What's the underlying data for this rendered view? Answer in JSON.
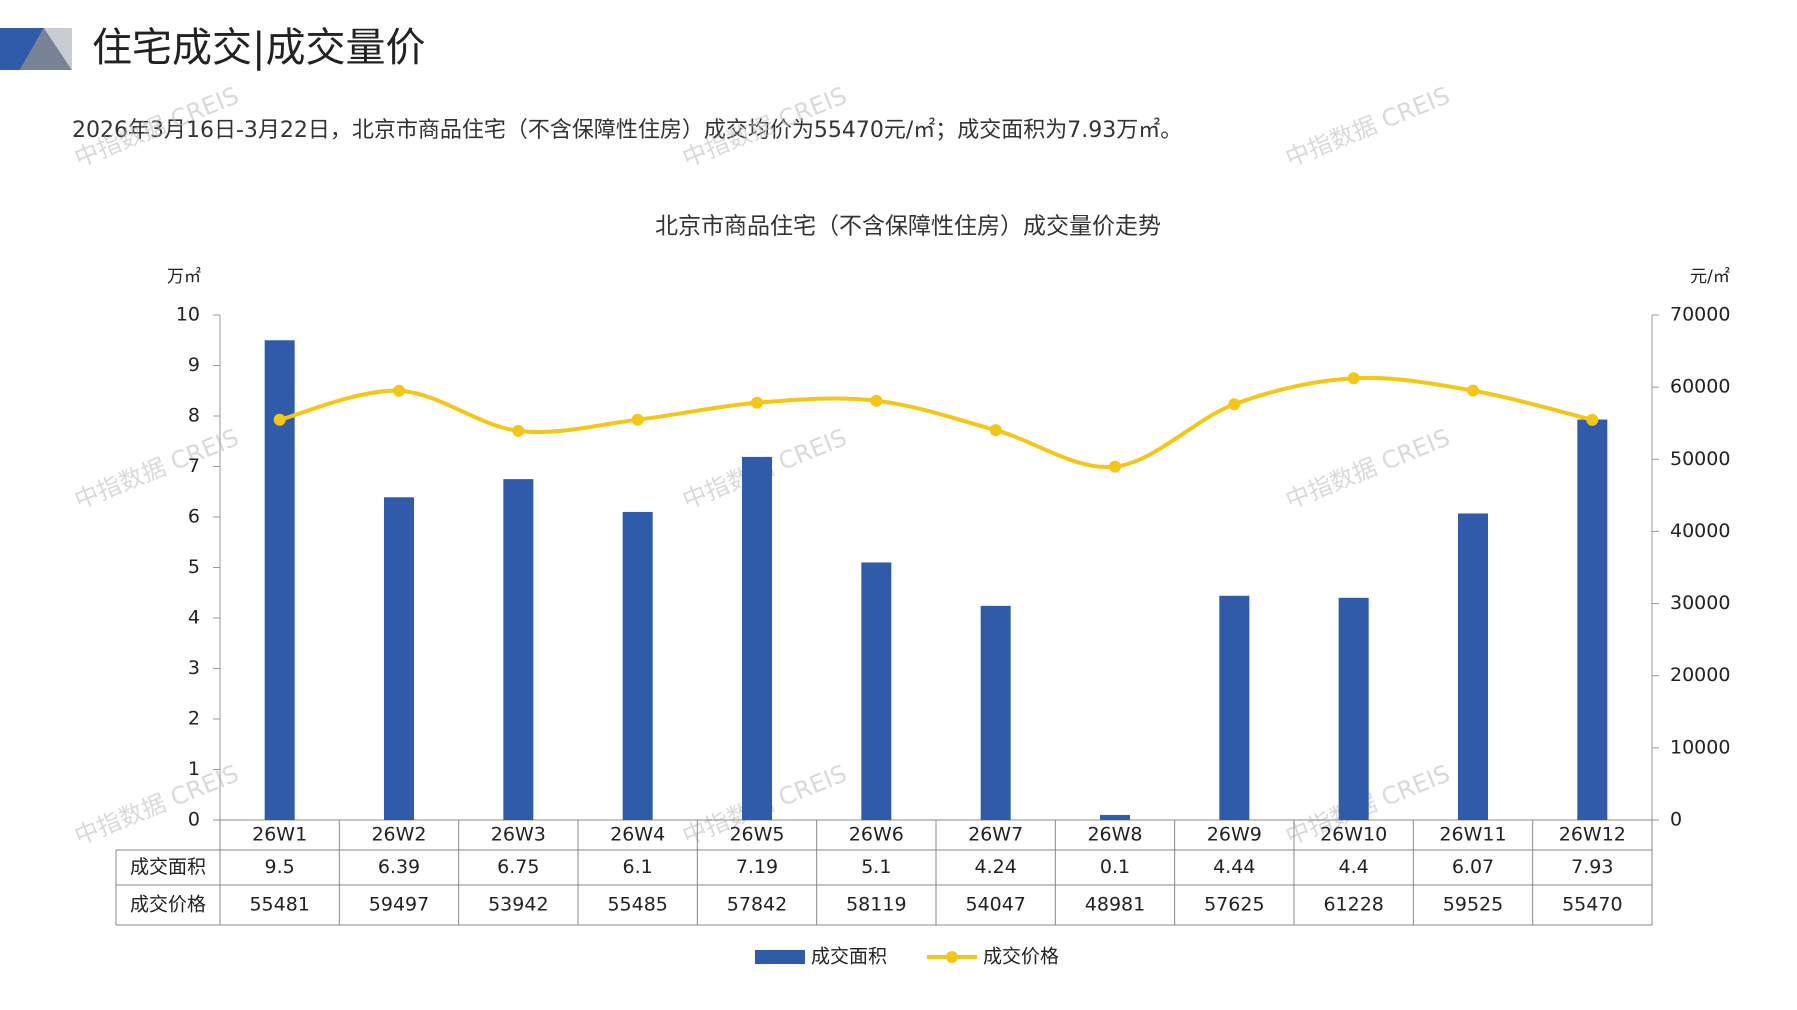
{
  "header": {
    "title": "住宅成交|成交量价",
    "subtitle": "2026年3月16日-3月22日，北京市商品住宅（不含保障性住房）成交均价为55470元/㎡；成交面积为7.93万㎡。"
  },
  "watermark": "中指数据 CREIS",
  "chart_data": {
    "type": "bar-line",
    "title": "北京市商品住宅（不含保障性住房）成交量价走势",
    "y_label": "万㎡",
    "y2_label": "元/㎡",
    "categories": [
      "26W1",
      "26W2",
      "26W3",
      "26W4",
      "26W5",
      "26W6",
      "26W7",
      "26W8",
      "26W9",
      "26W10",
      "26W11",
      "26W12"
    ],
    "series": [
      {
        "name": "成交面积",
        "type": "bar",
        "color": "#2f5ba8",
        "values": [
          9.5,
          6.39,
          6.75,
          6.1,
          7.19,
          5.1,
          4.24,
          0.1,
          4.44,
          4.4,
          6.07,
          7.93
        ]
      },
      {
        "name": "成交价格",
        "type": "line",
        "axis": "y2",
        "color": "#f5c518",
        "values": [
          55481,
          59497,
          53942,
          55485,
          57842,
          58119,
          54047,
          48981,
          57625,
          61228,
          59525,
          55470
        ]
      }
    ],
    "ylim": [
      0,
      10
    ],
    "yticks": [
      0,
      1,
      2,
      3,
      4,
      5,
      6,
      7,
      8,
      9,
      10
    ],
    "y2lim": [
      0,
      70000
    ],
    "y2ticks": [
      0,
      10000,
      20000,
      30000,
      40000,
      50000,
      60000,
      70000
    ],
    "legend": "bottom"
  }
}
